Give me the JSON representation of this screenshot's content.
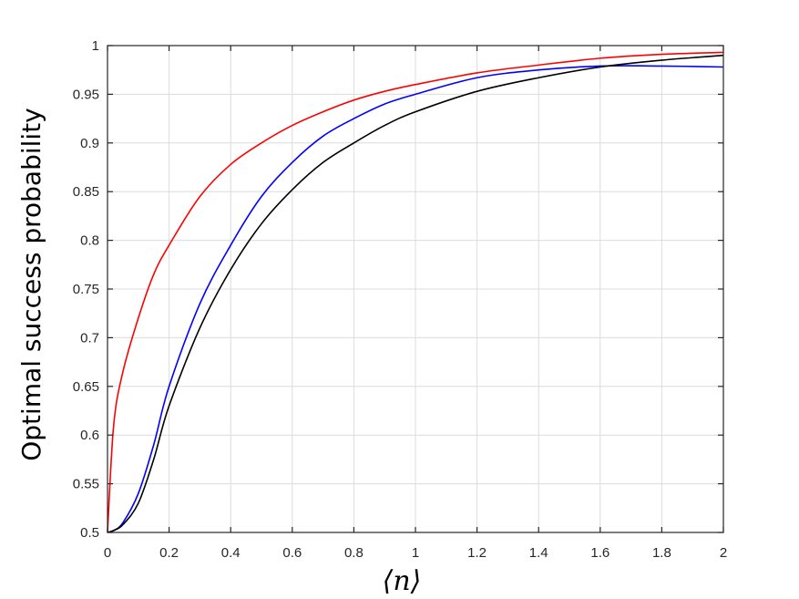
{
  "chart_data": {
    "type": "line",
    "title": "",
    "xlabel": "⟨n⟩",
    "ylabel": "Optimal success probability",
    "xlim": [
      0,
      2
    ],
    "ylim": [
      0.5,
      1
    ],
    "xticks": [
      "0",
      "0.2",
      "0.4",
      "0.6",
      "0.8",
      "1",
      "1.2",
      "1.4",
      "1.6",
      "1.8",
      "2"
    ],
    "yticks": [
      "0.5",
      "0.55",
      "0.6",
      "0.65",
      "0.7",
      "0.75",
      "0.8",
      "0.85",
      "0.9",
      "0.95",
      "1"
    ],
    "grid": true,
    "x": [
      0,
      0.02,
      0.05,
      0.1,
      0.15,
      0.2,
      0.3,
      0.4,
      0.5,
      0.6,
      0.7,
      0.8,
      0.9,
      1.0,
      1.2,
      1.4,
      1.6,
      1.8,
      2.0
    ],
    "series": [
      {
        "color": "#ff0000",
        "values": [
          0.5,
          0.61,
          0.665,
          0.72,
          0.765,
          0.795,
          0.845,
          0.878,
          0.9,
          0.918,
          0.932,
          0.944,
          0.953,
          0.96,
          0.972,
          0.98,
          0.987,
          0.991,
          0.993
        ]
      },
      {
        "color": "#0000ff",
        "values": [
          0.5,
          0.502,
          0.51,
          0.54,
          0.59,
          0.65,
          0.735,
          0.795,
          0.845,
          0.88,
          0.907,
          0.925,
          0.94,
          0.95,
          0.967,
          0.975,
          0.979,
          0.979,
          0.978
        ]
      },
      {
        "color": "#000000",
        "values": [
          0.5,
          0.502,
          0.508,
          0.53,
          0.575,
          0.63,
          0.71,
          0.77,
          0.817,
          0.852,
          0.88,
          0.9,
          0.918,
          0.932,
          0.953,
          0.967,
          0.978,
          0.985,
          0.99
        ]
      }
    ]
  }
}
